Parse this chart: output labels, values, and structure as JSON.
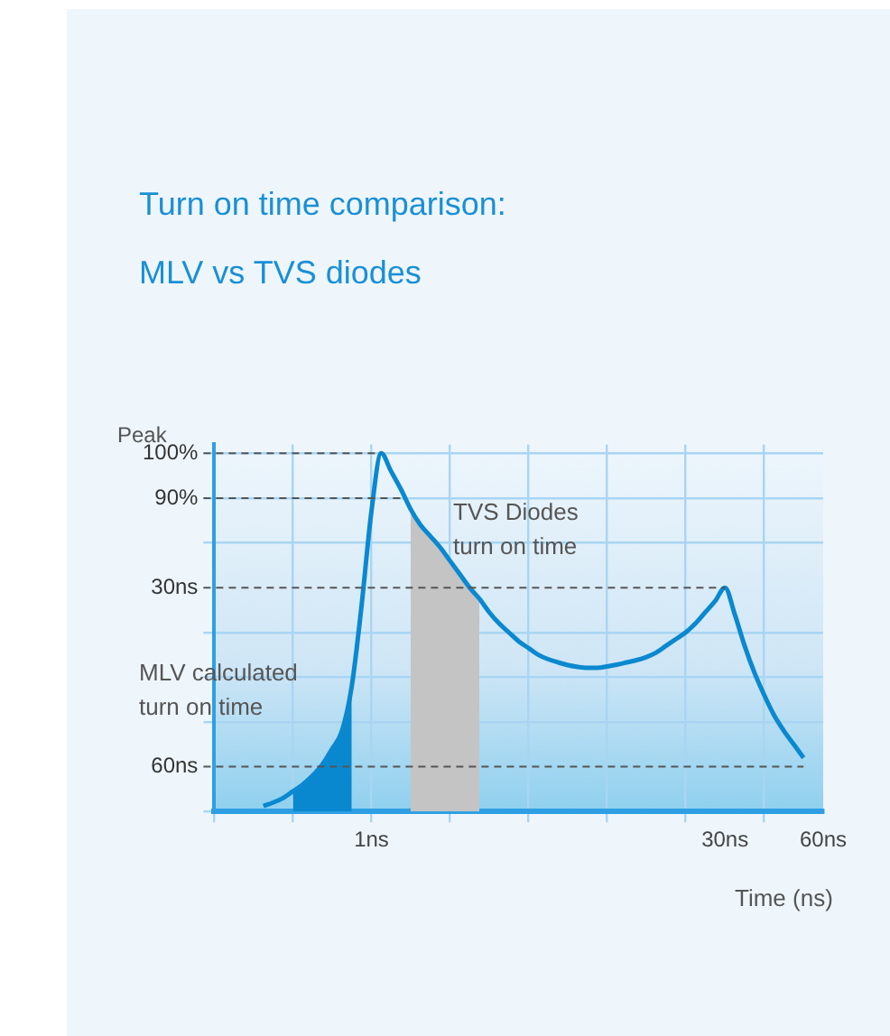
{
  "chart_data": {
    "type": "line",
    "title": "Turn on time comparison:\nMLV vs TVS diodes",
    "xlabel": "Time (ns)",
    "ylabel": "Peak",
    "annotations": [
      "TVS Diodes\nturn on time",
      "MLV calculated\nturn on time"
    ],
    "categories": [
      null,
      null,
      null,
      null,
      null,
      null,
      null,
      null,
      null,
      null,
      null,
      null,
      null,
      null,
      null,
      null,
      "1ns",
      null,
      null,
      null,
      null,
      null,
      null,
      null,
      null,
      null,
      null,
      null,
      null,
      null,
      null,
      null,
      null,
      null,
      null,
      null,
      null,
      null,
      null,
      null,
      null,
      null,
      null,
      null,
      null,
      null,
      null,
      null,
      null,
      null,
      null,
      null,
      "30ns",
      null,
      null,
      null,
      null,
      null,
      null,
      null,
      null,
      null,
      "60ns"
    ],
    "ylim": [
      20,
      102
    ],
    "yticks": [
      {
        "value": 20,
        "label": null
      },
      {
        "value": 40,
        "label": null
      },
      {
        "value": 50,
        "label": null
      },
      {
        "value": 60,
        "label": null
      },
      {
        "value": 80,
        "label": null
      },
      {
        "value": 90,
        "label": "90%"
      },
      {
        "value": 100,
        "label": "100%"
      }
    ],
    "grid": true,
    "legend": false,
    "marker": "none",
    "ref_lines": [
      {
        "axis": "y",
        "value": 100,
        "line_style": "dashed"
      },
      {
        "axis": "y",
        "value": 90,
        "line_style": "dashed"
      },
      {
        "axis": "y",
        "value": 70,
        "label": "30ns",
        "line_style": "dashed"
      },
      {
        "axis": "y",
        "value": 30,
        "label": "60ns",
        "line_style": "dashed"
      }
    ],
    "series": [
      {
        "type": "area",
        "color": "#0a88cf",
        "values": [
          null,
          null,
          null,
          null,
          null,
          null,
          null,
          null,
          24.5,
          26,
          28,
          30.5,
          34,
          38,
          48,
          null,
          null,
          null,
          null,
          null,
          null,
          null,
          null,
          null,
          null,
          null,
          null,
          null,
          null,
          null,
          null,
          null,
          null,
          null,
          null,
          null,
          null,
          null,
          null,
          null,
          null,
          null,
          null,
          null,
          null,
          null,
          null,
          null,
          null,
          null,
          null,
          null,
          null,
          null,
          null,
          null,
          null,
          null,
          null,
          null,
          null,
          null,
          null
        ]
      },
      {
        "type": "area",
        "color": "#c4c4c4",
        "values": [
          null,
          null,
          null,
          null,
          null,
          null,
          null,
          null,
          null,
          null,
          null,
          null,
          null,
          null,
          null,
          null,
          null,
          null,
          null,
          null,
          87.5,
          84,
          81.5,
          79,
          76,
          73,
          70,
          67.5,
          null,
          null,
          null,
          null,
          null,
          null,
          null,
          null,
          null,
          null,
          null,
          null,
          null,
          null,
          null,
          null,
          null,
          null,
          null,
          null,
          null,
          null,
          null,
          null,
          null,
          null,
          null,
          null,
          null,
          null,
          null,
          null,
          null,
          null,
          null
        ]
      },
      {
        "color": "#0a88d0",
        "values": [
          null,
          null,
          null,
          null,
          null,
          21.2,
          22,
          23,
          24.5,
          26,
          28,
          30.5,
          34,
          38,
          48,
          66,
          87,
          100,
          96,
          92,
          87.5,
          84,
          81.5,
          79,
          76,
          73,
          70,
          67.5,
          64.5,
          62,
          60,
          58,
          56.5,
          55,
          54,
          53.3,
          52.7,
          52.3,
          52.1,
          52.1,
          52.4,
          52.8,
          53.3,
          53.8,
          54.5,
          55.5,
          57,
          58.5,
          60,
          62,
          64.5,
          67,
          70,
          64,
          57,
          51,
          46,
          41.5,
          38,
          35,
          32,
          null,
          null
        ]
      }
    ]
  }
}
